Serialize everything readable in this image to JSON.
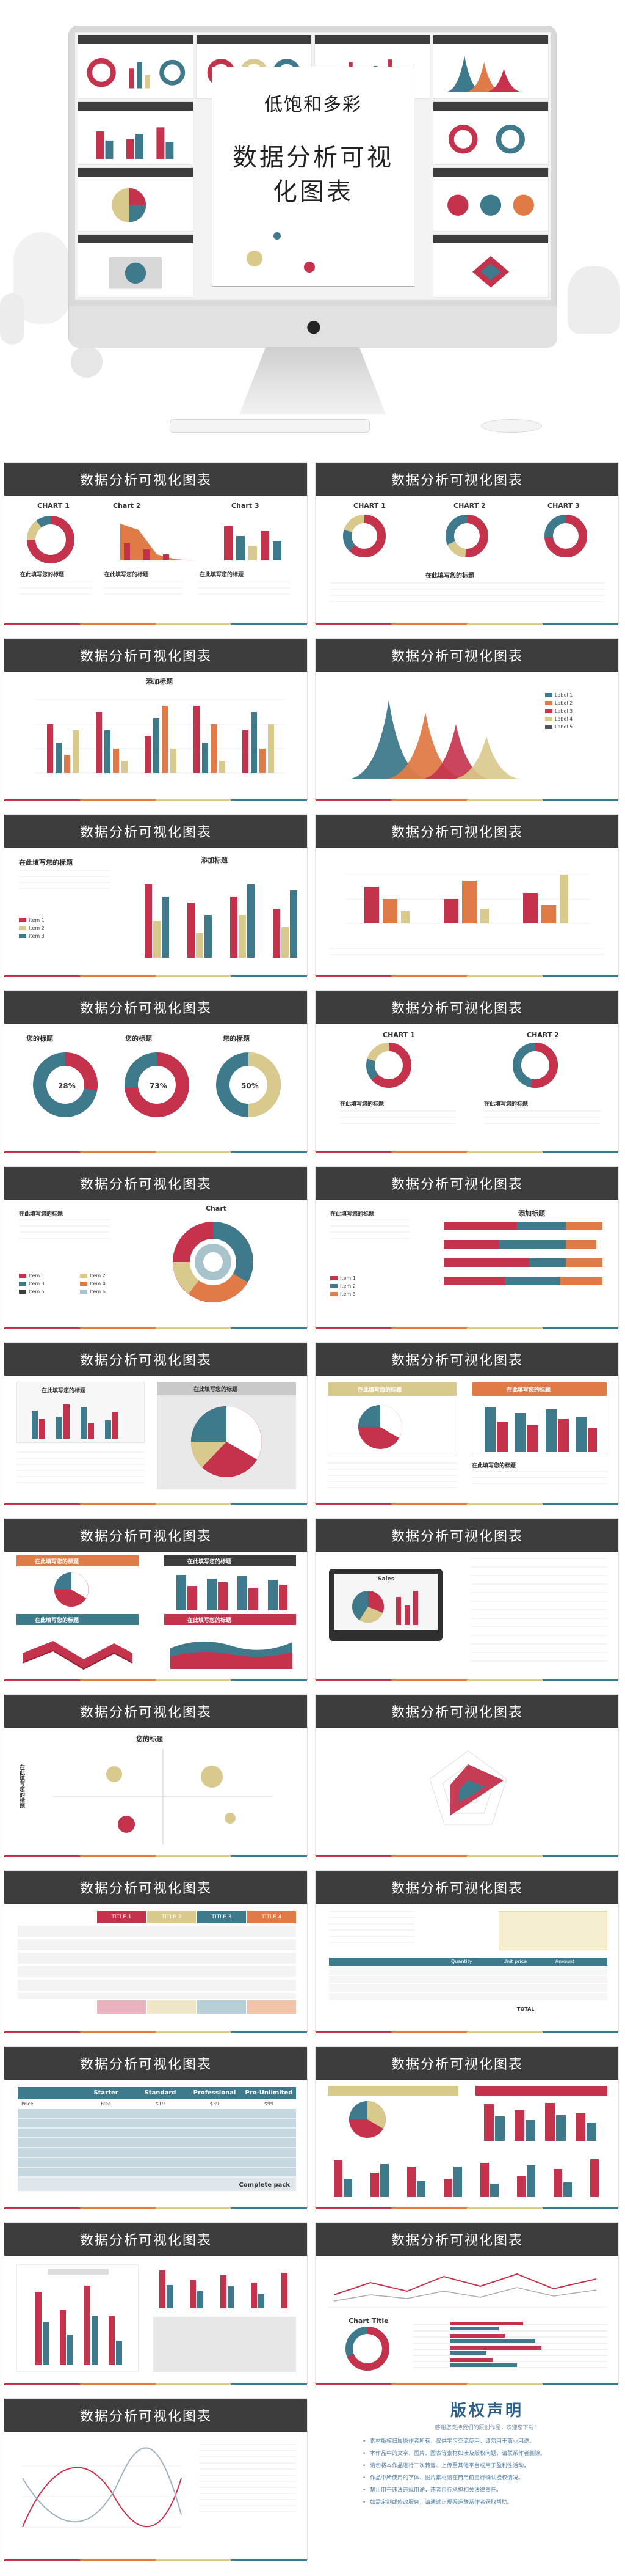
{
  "hero": {
    "subtitle": "低饱和多彩",
    "title": "数据分析可视化图表"
  },
  "slide_title": "数据分析可视化图表",
  "colors": {
    "red": "#c4324c",
    "orange": "#e07b48",
    "sand": "#d9c98c",
    "teal": "#3f7a8c",
    "dark": "#3d3d3d"
  },
  "slides": {
    "s1": {
      "c1": "CHART 1",
      "c2": "Chart 2",
      "c3": "Chart 3",
      "h1": "在此填写您的标题",
      "h2": "在此填写您的标题",
      "h3": "在此填写您的标题"
    },
    "s2": {
      "c1": "CHART 1",
      "c2": "CHART 2",
      "c3": "CHART 3",
      "h": "在此填写您的标题"
    },
    "s3": {
      "title": "添加标题"
    },
    "s4": {
      "l1": "Label 1",
      "l2": "Label 2",
      "l3": "Label 3",
      "l4": "Label 4",
      "l5": "Label 5"
    },
    "s5": {
      "h": "在此填写您的标题",
      "chart": "添加标题",
      "items": [
        "Item 1",
        "Item 2",
        "Item 3"
      ]
    },
    "s7": {
      "h1": "您的标题",
      "h2": "您的标题",
      "h3": "您的标题",
      "p1": "28%",
      "p2": "73%",
      "p3": "50%"
    },
    "s8": {
      "c1": "CHART 1",
      "c2": "CHART 2",
      "h1": "在此填写您的标题",
      "h2": "在此填写您的标题"
    },
    "s9": {
      "h": "在此填写您的标题",
      "chart": "Chart",
      "items": [
        "Item 1",
        "Item 2",
        "Item 3",
        "Item 4",
        "Item 5",
        "Item 6"
      ]
    },
    "s10": {
      "h": "在此填写您的标题",
      "chart": "添加标题",
      "items": [
        "Item 1",
        "Item 2",
        "Item 3"
      ]
    },
    "s11": {
      "h1": "在此填写您的标题",
      "h2": "在此填写您的标题"
    },
    "s12": {
      "h1": "在此填写您的标题",
      "h2": "在此填写您的标题",
      "h3": "在此填写您的标题"
    },
    "s13": {
      "h1": "在此填写您的标题",
      "h2": "在此填写您的标题",
      "h3": "在此填写您的标题",
      "h4": "在此填写您的标题"
    },
    "s14": {
      "dev": "Sales"
    },
    "s15": {
      "title": "您的标题",
      "ylab": "在此填写您的标题"
    },
    "s17": {
      "t1": "TITLE 1",
      "t2": "TITLE 2",
      "t3": "TITLE 3",
      "t4": "TITLE 4"
    },
    "s18": {
      "qty": "Quantity",
      "price": "Unit price",
      "amount": "Amount",
      "total": "TOTAL"
    },
    "s19": {
      "c1": "Starter",
      "c2": "Standard",
      "c3": "Professional",
      "c4": "Pro-Unlimited",
      "price": "Price",
      "f": "Free",
      "p1": "$19",
      "p2": "$39",
      "p3": "$99",
      "last": "Complete pack"
    },
    "s22": {
      "ch": "Chart Title"
    }
  },
  "copyright": {
    "title": "版权声明",
    "subtitle": "感谢您支持我们的原创作品，欢迎您下载！",
    "items": [
      "素材版权归属原作者所有，仅供学习交流使用，请勿用于商业用途。",
      "本作品中的文字、图片、图表等素材如涉及版权问题，请联系作者删除。",
      "请勿将本作品进行二次转售、上传至其他平台或用于盈利性活动。",
      "作品中所使用的字体、图片素材请在商用前自行确认授权情况。",
      "禁止用于违法违规用途，违者自行承担相关法律责任。",
      "如需定制或修改服务，请通过正规渠道联系作者获取帮助。"
    ]
  }
}
